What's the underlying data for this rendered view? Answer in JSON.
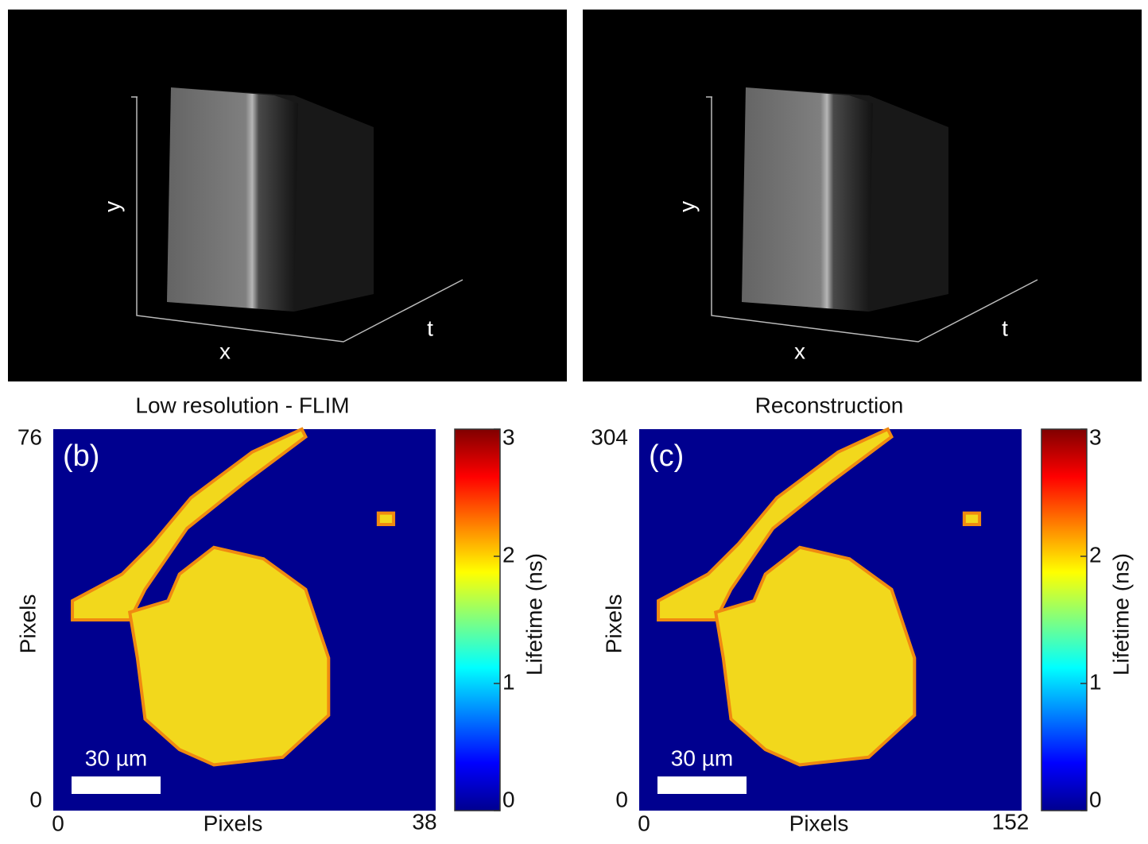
{
  "panels": [
    {
      "volume": {
        "x_label": "x",
        "y_label": "y",
        "t_label": "t"
      },
      "caption": "Low resolution - FLIM",
      "map": {
        "label": "(b)",
        "xlabel": "Pixels",
        "ylabel": "Pixels",
        "xlim": [
          0,
          38
        ],
        "ylim": [
          0,
          76
        ],
        "scalebar": "30 µm"
      },
      "colorbar": {
        "label": "Lifetime (ns)",
        "clim": [
          0,
          3
        ],
        "ticks": [
          0,
          1,
          2,
          3
        ]
      }
    },
    {
      "volume": {
        "x_label": "x",
        "y_label": "y",
        "t_label": "t"
      },
      "caption": "Reconstruction",
      "map": {
        "label": "(c)",
        "xlabel": "Pixels",
        "ylabel": "Pixels",
        "xlim": [
          0,
          152
        ],
        "ylim": [
          0,
          304
        ],
        "scalebar": "30 µm"
      },
      "colorbar": {
        "label": "Lifetime (ns)",
        "clim": [
          0,
          3
        ],
        "ticks": [
          0,
          1,
          2,
          3
        ]
      }
    }
  ]
}
